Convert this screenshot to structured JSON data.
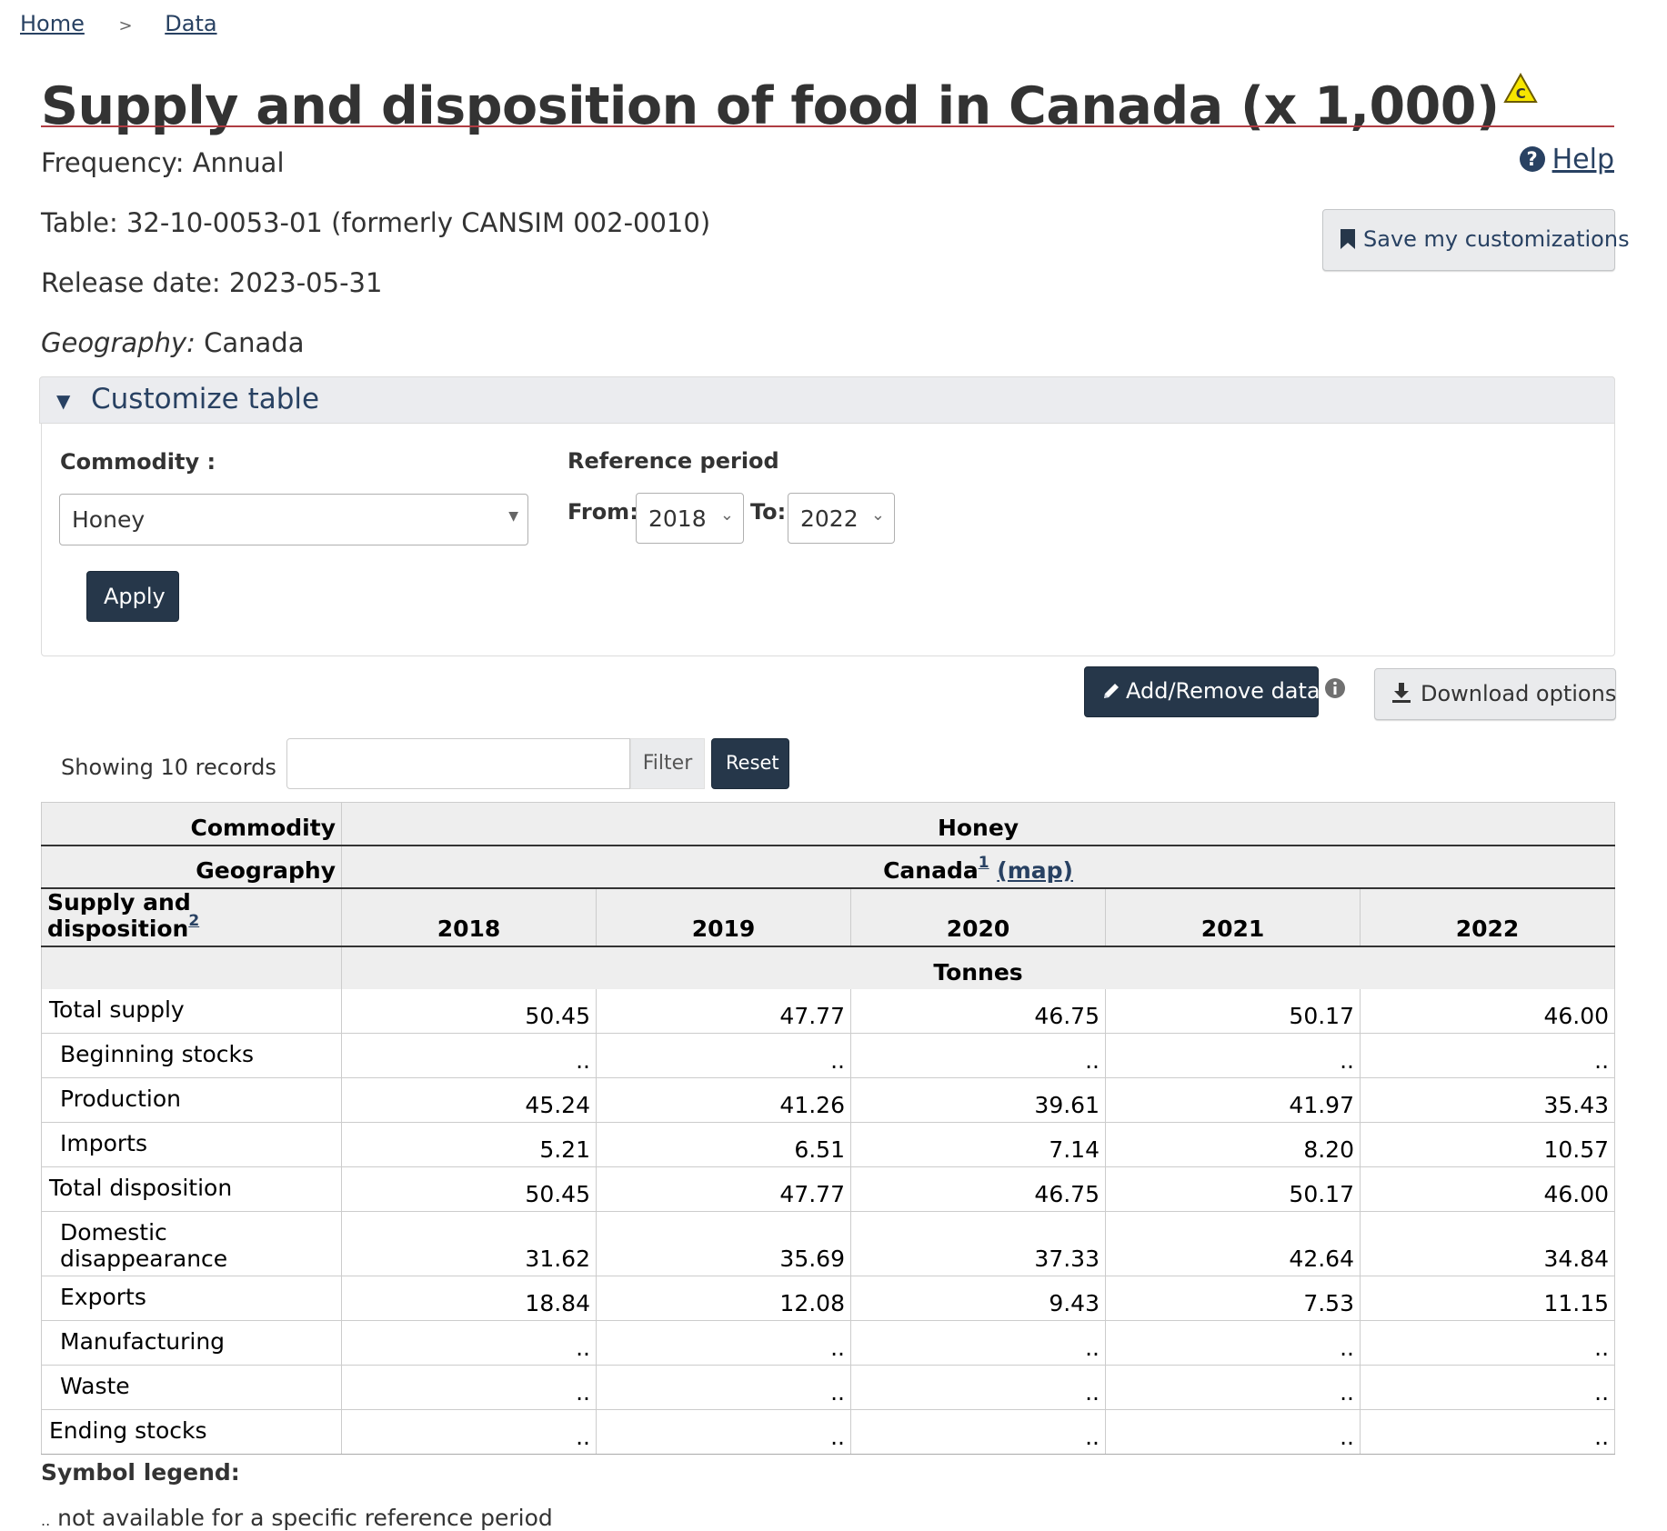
{
  "breadcrumb": {
    "home": "Home",
    "separator": ">",
    "data": "Data"
  },
  "page": {
    "title": "Supply and disposition of food in Canada (x 1,000)",
    "warning_icon": "caution-triangle-icon",
    "frequency_label": "Frequency:",
    "frequency_value": "Annual",
    "table_text": "Table: 32-10-0053-01 (formerly CANSIM 002-0010)",
    "release_text": "Release date: 2023-05-31",
    "geography_label": "Geography:",
    "geography_value": "Canada"
  },
  "help": {
    "label": "Help",
    "icon": "question-circle-icon"
  },
  "save_button": {
    "label": "Save my customizations",
    "icon": "bookmark-icon"
  },
  "customize": {
    "header": "Customize table",
    "commodity_label": "Commodity :",
    "commodity_value": "Honey",
    "reference_period_label": "Reference period",
    "from_label": "From:",
    "from_value": "2018",
    "to_label": "To:",
    "to_value": "2022",
    "apply_label": "Apply"
  },
  "toolbar": {
    "add_remove_label": "Add/Remove data",
    "download_label": "Download options"
  },
  "filter": {
    "showing_text": "Showing 10 records",
    "input_value": "",
    "filter_label": "Filter",
    "reset_label": "Reset"
  },
  "table": {
    "commodity_header": "Commodity",
    "commodity_value": "Honey",
    "geography_header": "Geography",
    "geography_value": "Canada",
    "geography_footnote": "1",
    "map_link": "(map)",
    "supply_header": "Supply and disposition",
    "supply_footnote": "2",
    "years": [
      "2018",
      "2019",
      "2020",
      "2021",
      "2022"
    ],
    "unit": "Tonnes",
    "rows": [
      {
        "label": "Total supply",
        "values": [
          "50.45",
          "47.77",
          "46.75",
          "50.17",
          "46.00"
        ]
      },
      {
        "label": "Beginning stocks",
        "values": [
          "..",
          "..",
          "..",
          "..",
          ".."
        ]
      },
      {
        "label": "Production",
        "values": [
          "45.24",
          "41.26",
          "39.61",
          "41.97",
          "35.43"
        ]
      },
      {
        "label": "Imports",
        "values": [
          "5.21",
          "6.51",
          "7.14",
          "8.20",
          "10.57"
        ]
      },
      {
        "label": "Total disposition",
        "values": [
          "50.45",
          "47.77",
          "46.75",
          "50.17",
          "46.00"
        ]
      },
      {
        "label": "Domestic disappearance",
        "values": [
          "31.62",
          "35.69",
          "37.33",
          "42.64",
          "34.84"
        ]
      },
      {
        "label": "Exports",
        "values": [
          "18.84",
          "12.08",
          "9.43",
          "7.53",
          "11.15"
        ]
      },
      {
        "label": "Manufacturing",
        "values": [
          "..",
          "..",
          "..",
          "..",
          ".."
        ]
      },
      {
        "label": "Waste",
        "values": [
          "..",
          "..",
          "..",
          "..",
          ".."
        ]
      },
      {
        "label": "Ending stocks",
        "values": [
          "..",
          "..",
          "..",
          "..",
          ".."
        ]
      }
    ]
  },
  "legend": {
    "title": "Symbol legend:",
    "symbol": "..",
    "description": "not available for a specific reference period"
  }
}
